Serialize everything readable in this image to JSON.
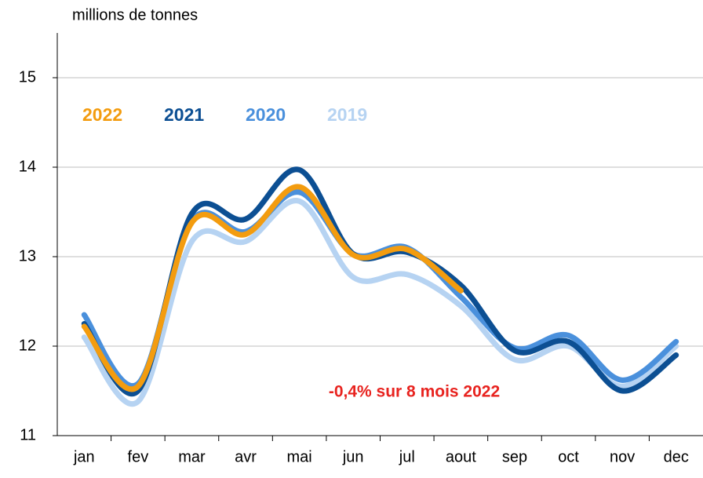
{
  "chart_data": {
    "type": "line",
    "y_label": "millions de tonnes",
    "annotation": "-0,4% sur 8 mois 2022",
    "categories": [
      "jan",
      "fev",
      "mar",
      "avr",
      "mai",
      "jun",
      "jul",
      "aout",
      "sep",
      "oct",
      "nov",
      "dec"
    ],
    "series": [
      {
        "name": "2022",
        "color": "#f39c0f",
        "values": [
          12.22,
          11.55,
          13.38,
          13.25,
          13.78,
          13.02,
          13.08,
          12.62,
          null,
          null,
          null,
          null
        ]
      },
      {
        "name": "2021",
        "color": "#0c4f93",
        "values": [
          12.25,
          11.5,
          13.48,
          13.42,
          13.97,
          13.03,
          13.05,
          12.68,
          11.95,
          12.05,
          11.5,
          11.9
        ]
      },
      {
        "name": "2020",
        "color": "#4a90dc",
        "values": [
          12.35,
          11.58,
          13.4,
          13.28,
          13.72,
          13.03,
          13.1,
          12.55,
          11.98,
          12.12,
          11.62,
          12.05
        ]
      },
      {
        "name": "2019",
        "color": "#b6d3f2",
        "values": [
          12.1,
          11.38,
          13.17,
          13.17,
          13.62,
          12.77,
          12.8,
          12.45,
          11.85,
          12.0,
          11.55,
          12.0
        ]
      }
    ],
    "ylim": [
      11,
      15.5
    ],
    "yticks": [
      11,
      12,
      13,
      14,
      15
    ],
    "grid": true
  }
}
